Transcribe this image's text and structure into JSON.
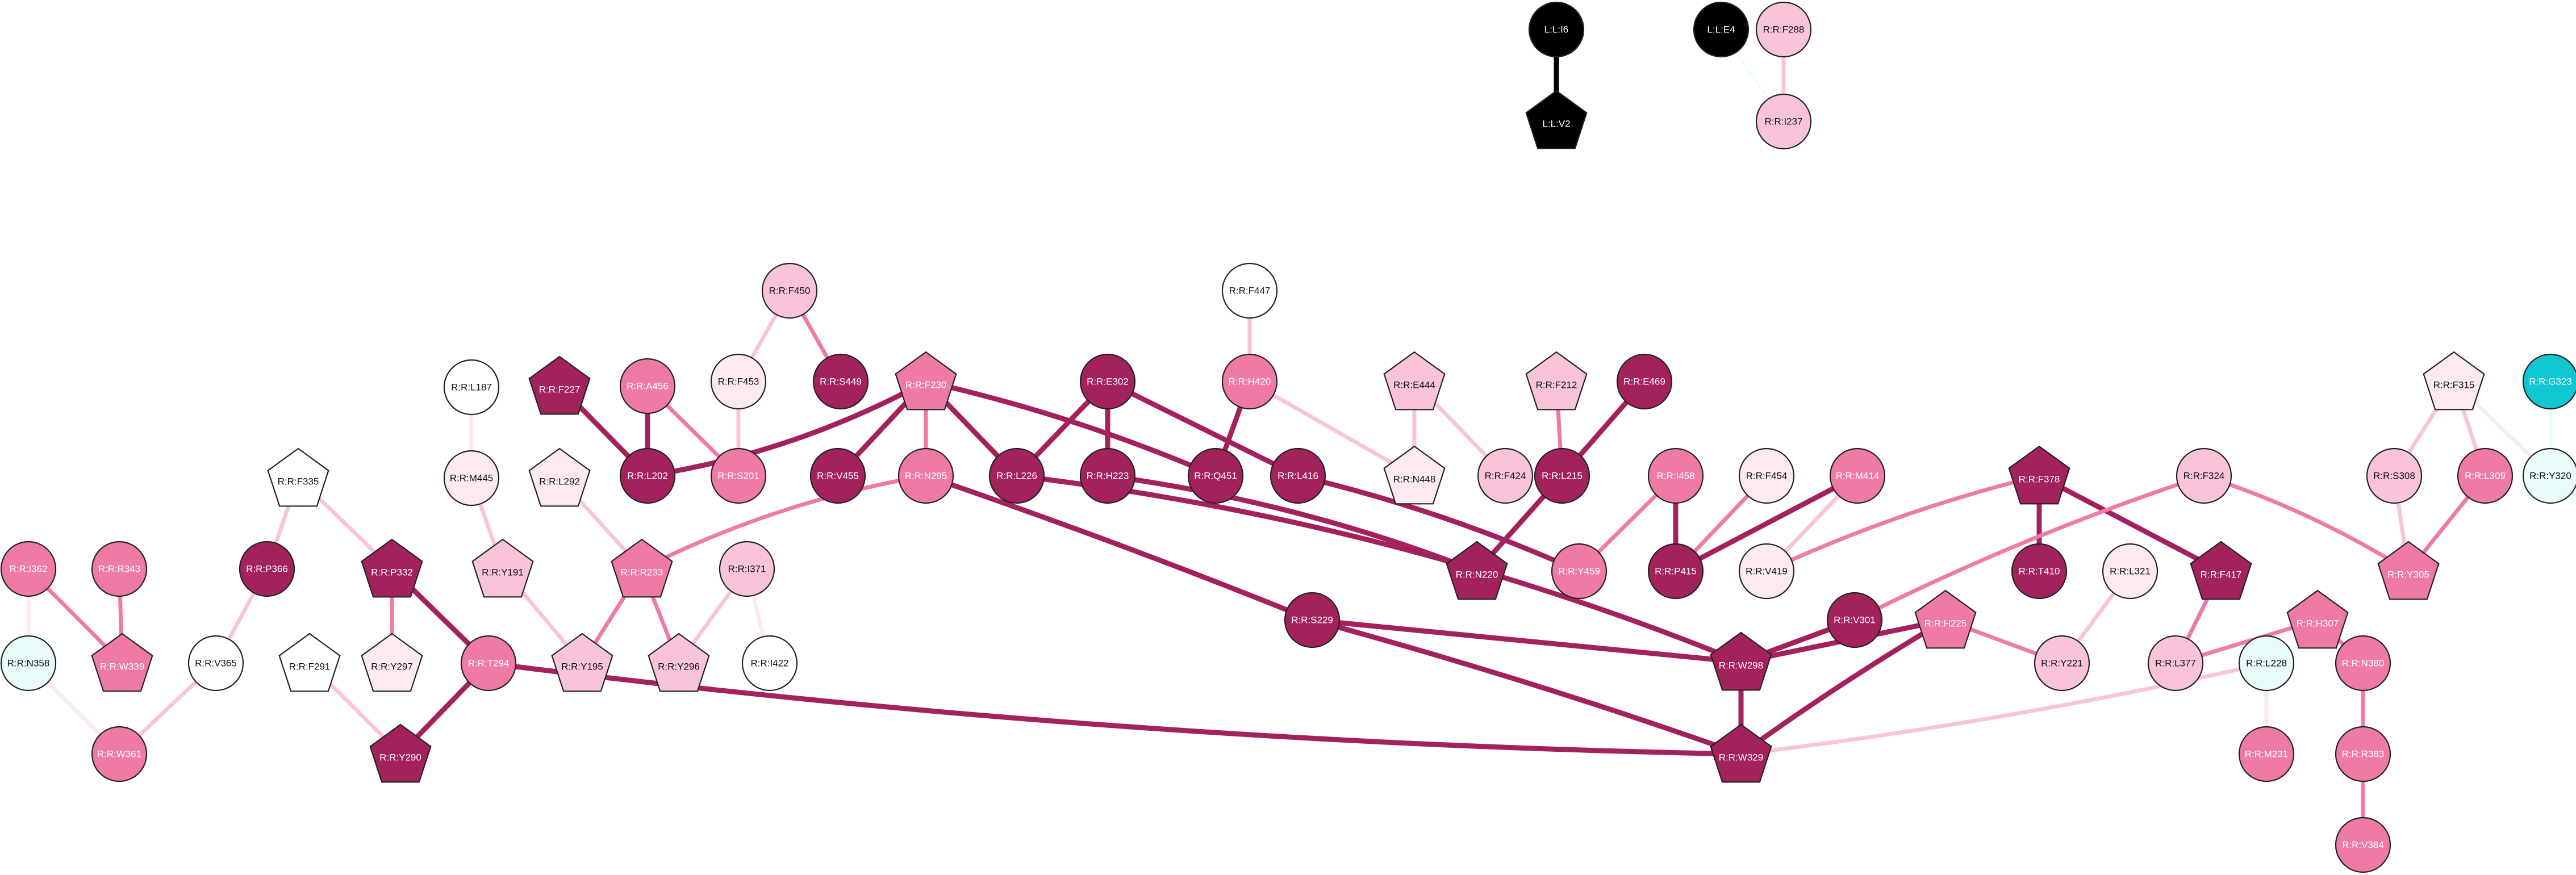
{
  "colors": {
    "black": "#000000",
    "dark": "#a3215d",
    "medium": "#ef7aa6",
    "light": "#f9c4da",
    "pale": "#fde9f1",
    "white": "#ffffff",
    "cyan": "#0fc6d1",
    "palecyan": "#e9fbfb"
  },
  "nodes": [
    {
      "id": "L:L:I6",
      "shape": "circle",
      "color": "black"
    },
    {
      "id": "L:L:V2",
      "shape": "pentagon",
      "color": "black"
    },
    {
      "id": "L:L:E4",
      "shape": "circle",
      "color": "black"
    },
    {
      "id": "R:R:F288",
      "shape": "circle",
      "color": "light"
    },
    {
      "id": "R:R:I237",
      "shape": "circle",
      "color": "light"
    },
    {
      "id": "R:R:F450",
      "shape": "circle",
      "color": "light"
    },
    {
      "id": "R:R:F453",
      "shape": "circle",
      "color": "pale"
    },
    {
      "id": "R:R:S449",
      "shape": "circle",
      "color": "dark"
    },
    {
      "id": "R:R:F447",
      "shape": "circle",
      "color": "white"
    },
    {
      "id": "R:R:H420",
      "shape": "circle",
      "color": "medium"
    },
    {
      "id": "R:R:L187",
      "shape": "circle",
      "color": "white"
    },
    {
      "id": "R:R:M445",
      "shape": "circle",
      "color": "pale"
    },
    {
      "id": "R:R:Y191",
      "shape": "pentagon",
      "color": "light"
    },
    {
      "id": "R:R:F227",
      "shape": "pentagon",
      "color": "dark"
    },
    {
      "id": "R:R:L202",
      "shape": "circle",
      "color": "dark"
    },
    {
      "id": "R:R:A456",
      "shape": "circle",
      "color": "medium"
    },
    {
      "id": "R:R:S201",
      "shape": "circle",
      "color": "medium"
    },
    {
      "id": "R:R:F230",
      "shape": "pentagon",
      "color": "medium"
    },
    {
      "id": "R:R:V455",
      "shape": "circle",
      "color": "dark"
    },
    {
      "id": "R:R:N295",
      "shape": "circle",
      "color": "medium"
    },
    {
      "id": "R:R:L226",
      "shape": "circle",
      "color": "dark"
    },
    {
      "id": "R:R:E302",
      "shape": "circle",
      "color": "dark"
    },
    {
      "id": "R:R:H223",
      "shape": "circle",
      "color": "dark"
    },
    {
      "id": "R:R:Q451",
      "shape": "circle",
      "color": "dark"
    },
    {
      "id": "R:R:L416",
      "shape": "circle",
      "color": "dark"
    },
    {
      "id": "R:R:E444",
      "shape": "pentagon",
      "color": "light"
    },
    {
      "id": "R:R:N448",
      "shape": "pentagon",
      "color": "pale"
    },
    {
      "id": "R:R:F424",
      "shape": "circle",
      "color": "light"
    },
    {
      "id": "R:R:F212",
      "shape": "pentagon",
      "color": "light"
    },
    {
      "id": "R:R:E469",
      "shape": "circle",
      "color": "dark"
    },
    {
      "id": "R:R:L215",
      "shape": "circle",
      "color": "dark"
    },
    {
      "id": "R:R:N220",
      "shape": "pentagon",
      "color": "dark"
    },
    {
      "id": "R:R:I458",
      "shape": "circle",
      "color": "medium"
    },
    {
      "id": "R:R:Y459",
      "shape": "circle",
      "color": "medium"
    },
    {
      "id": "R:R:F454",
      "shape": "circle",
      "color": "pale"
    },
    {
      "id": "R:R:M414",
      "shape": "circle",
      "color": "medium"
    },
    {
      "id": "R:R:P415",
      "shape": "circle",
      "color": "dark"
    },
    {
      "id": "R:R:V419",
      "shape": "circle",
      "color": "pale"
    },
    {
      "id": "R:R:L292",
      "shape": "pentagon",
      "color": "pale"
    },
    {
      "id": "R:R:R233",
      "shape": "pentagon",
      "color": "medium"
    },
    {
      "id": "R:R:I371",
      "shape": "circle",
      "color": "light"
    },
    {
      "id": "R:R:Y195",
      "shape": "pentagon",
      "color": "light"
    },
    {
      "id": "R:R:Y296",
      "shape": "pentagon",
      "color": "light"
    },
    {
      "id": "R:R:I422",
      "shape": "circle",
      "color": "white"
    },
    {
      "id": "R:R:F335",
      "shape": "pentagon",
      "color": "white"
    },
    {
      "id": "R:R:P366",
      "shape": "circle",
      "color": "dark"
    },
    {
      "id": "R:R:P332",
      "shape": "pentagon",
      "color": "dark"
    },
    {
      "id": "R:R:Y297",
      "shape": "pentagon",
      "color": "pale"
    },
    {
      "id": "R:R:T294",
      "shape": "circle",
      "color": "medium"
    },
    {
      "id": "R:R:Y290",
      "shape": "pentagon",
      "color": "dark"
    },
    {
      "id": "R:R:F291",
      "shape": "pentagon",
      "color": "white"
    },
    {
      "id": "R:R:I362",
      "shape": "circle",
      "color": "medium"
    },
    {
      "id": "R:R:R343",
      "shape": "circle",
      "color": "medium"
    },
    {
      "id": "R:R:W339",
      "shape": "pentagon",
      "color": "medium"
    },
    {
      "id": "R:R:N358",
      "shape": "circle",
      "color": "palecyan"
    },
    {
      "id": "R:R:V365",
      "shape": "circle",
      "color": "white"
    },
    {
      "id": "R:R:W361",
      "shape": "circle",
      "color": "medium"
    },
    {
      "id": "R:R:S229",
      "shape": "circle",
      "color": "dark"
    },
    {
      "id": "R:R:W298",
      "shape": "pentagon",
      "color": "dark"
    },
    {
      "id": "R:R:W329",
      "shape": "pentagon",
      "color": "dark"
    },
    {
      "id": "R:R:V301",
      "shape": "circle",
      "color": "dark"
    },
    {
      "id": "R:R:H225",
      "shape": "pentagon",
      "color": "medium"
    },
    {
      "id": "R:R:F378",
      "shape": "pentagon",
      "color": "dark"
    },
    {
      "id": "R:R:T410",
      "shape": "circle",
      "color": "dark"
    },
    {
      "id": "R:R:L321",
      "shape": "circle",
      "color": "pale"
    },
    {
      "id": "R:R:Y221",
      "shape": "circle",
      "color": "light"
    },
    {
      "id": "R:R:F324",
      "shape": "circle",
      "color": "light"
    },
    {
      "id": "R:R:F417",
      "shape": "pentagon",
      "color": "dark"
    },
    {
      "id": "R:R:L377",
      "shape": "circle",
      "color": "light"
    },
    {
      "id": "R:R:H307",
      "shape": "pentagon",
      "color": "medium"
    },
    {
      "id": "R:R:L228",
      "shape": "circle",
      "color": "palecyan"
    },
    {
      "id": "R:R:N380",
      "shape": "circle",
      "color": "medium"
    },
    {
      "id": "R:R:M231",
      "shape": "circle",
      "color": "medium"
    },
    {
      "id": "R:R:R383",
      "shape": "circle",
      "color": "medium"
    },
    {
      "id": "R:R:V384",
      "shape": "circle",
      "color": "medium"
    },
    {
      "id": "R:R:F315",
      "shape": "pentagon",
      "color": "pale"
    },
    {
      "id": "R:R:S308",
      "shape": "circle",
      "color": "light"
    },
    {
      "id": "R:R:L309",
      "shape": "circle",
      "color": "medium"
    },
    {
      "id": "R:R:Y305",
      "shape": "pentagon",
      "color": "medium"
    },
    {
      "id": "R:R:G323",
      "shape": "circle",
      "color": "cyan"
    },
    {
      "id": "R:R:Y320",
      "shape": "circle",
      "color": "palecyan"
    }
  ],
  "edges": [
    {
      "source": "L:L:I6",
      "target": "L:L:V2",
      "color": "black",
      "weight": "thick"
    },
    {
      "source": "L:L:E4",
      "target": "R:R:I237",
      "color": "palecyan",
      "weight": "thin"
    },
    {
      "source": "R:R:F288",
      "target": "R:R:I237",
      "color": "light",
      "weight": "medium"
    },
    {
      "source": "R:R:F450",
      "target": "R:R:F453",
      "color": "light",
      "weight": "medium"
    },
    {
      "source": "R:R:F450",
      "target": "R:R:S449",
      "color": "medium",
      "weight": "medium"
    },
    {
      "source": "R:R:F453",
      "target": "R:R:S201",
      "color": "light",
      "weight": "medium"
    },
    {
      "source": "R:R:F447",
      "target": "R:R:H420",
      "color": "light",
      "weight": "medium"
    },
    {
      "source": "R:R:H420",
      "target": "R:R:Q451",
      "color": "dark",
      "weight": "thick"
    },
    {
      "source": "R:R:H420",
      "target": "R:R:N448",
      "color": "light",
      "weight": "medium"
    },
    {
      "source": "R:R:L187",
      "target": "R:R:M445",
      "color": "pale",
      "weight": "medium"
    },
    {
      "source": "R:R:M445",
      "target": "R:R:Y191",
      "color": "light",
      "weight": "medium"
    },
    {
      "source": "R:R:Y191",
      "target": "R:R:Y195",
      "color": "light",
      "weight": "medium"
    },
    {
      "source": "R:R:F227",
      "target": "R:R:L202",
      "color": "dark",
      "weight": "thick"
    },
    {
      "source": "R:R:A456",
      "target": "R:R:L202",
      "color": "dark",
      "weight": "thick"
    },
    {
      "source": "R:R:A456",
      "target": "R:R:S201",
      "color": "medium",
      "weight": "medium"
    },
    {
      "source": "R:R:F230",
      "target": "R:R:L202",
      "color": "dark",
      "weight": "thick"
    },
    {
      "source": "R:R:F230",
      "target": "R:R:V455",
      "color": "dark",
      "weight": "thick"
    },
    {
      "source": "R:R:F230",
      "target": "R:R:N295",
      "color": "medium",
      "weight": "medium"
    },
    {
      "source": "R:R:F230",
      "target": "R:R:L226",
      "color": "dark",
      "weight": "thick"
    },
    {
      "source": "R:R:F230",
      "target": "R:R:Q451",
      "color": "dark",
      "weight": "thick"
    },
    {
      "source": "R:R:E302",
      "target": "R:R:L226",
      "color": "dark",
      "weight": "thick"
    },
    {
      "source": "R:R:E302",
      "target": "R:R:H223",
      "color": "dark",
      "weight": "thick"
    },
    {
      "source": "R:R:E302",
      "target": "R:R:L416",
      "color": "dark",
      "weight": "thick"
    },
    {
      "source": "R:R:L416",
      "target": "R:R:Y459",
      "color": "dark",
      "weight": "thick"
    },
    {
      "source": "R:R:E444",
      "target": "R:R:N448",
      "color": "light",
      "weight": "medium"
    },
    {
      "source": "R:R:E444",
      "target": "R:R:F424",
      "color": "light",
      "weight": "medium"
    },
    {
      "source": "R:R:F212",
      "target": "R:R:L215",
      "color": "medium",
      "weight": "medium"
    },
    {
      "source": "R:R:E469",
      "target": "R:R:L215",
      "color": "dark",
      "weight": "thick"
    },
    {
      "source": "R:R:L215",
      "target": "R:R:N220",
      "color": "dark",
      "weight": "thick"
    },
    {
      "source": "R:R:H223",
      "target": "R:R:N220",
      "color": "dark",
      "weight": "thick"
    },
    {
      "source": "R:R:L226",
      "target": "R:R:W298",
      "color": "dark",
      "weight": "thick"
    },
    {
      "source": "R:R:I458",
      "target": "R:R:Y459",
      "color": "medium",
      "weight": "medium"
    },
    {
      "source": "R:R:I458",
      "target": "R:R:P415",
      "color": "dark",
      "weight": "thick"
    },
    {
      "source": "R:R:F454",
      "target": "R:R:P415",
      "color": "medium",
      "weight": "medium"
    },
    {
      "source": "R:R:M414",
      "target": "R:R:P415",
      "color": "dark",
      "weight": "thick"
    },
    {
      "source": "R:R:M414",
      "target": "R:R:V419",
      "color": "light",
      "weight": "medium"
    },
    {
      "source": "R:R:L292",
      "target": "R:R:R233",
      "color": "light",
      "weight": "medium"
    },
    {
      "source": "R:R:N295",
      "target": "R:R:R233",
      "color": "medium",
      "weight": "medium"
    },
    {
      "source": "R:R:N295",
      "target": "R:R:S229",
      "color": "dark",
      "weight": "thick"
    },
    {
      "source": "R:R:R233",
      "target": "R:R:Y195",
      "color": "medium",
      "weight": "medium"
    },
    {
      "source": "R:R:R233",
      "target": "R:R:Y296",
      "color": "medium",
      "weight": "medium"
    },
    {
      "source": "R:R:I371",
      "target": "R:R:Y296",
      "color": "light",
      "weight": "medium"
    },
    {
      "source": "R:R:I371",
      "target": "R:R:I422",
      "color": "pale",
      "weight": "medium"
    },
    {
      "source": "R:R:F335",
      "target": "R:R:P366",
      "color": "light",
      "weight": "medium"
    },
    {
      "source": "R:R:F335",
      "target": "R:R:P332",
      "color": "light",
      "weight": "medium"
    },
    {
      "source": "R:R:P332",
      "target": "R:R:Y297",
      "color": "medium",
      "weight": "medium"
    },
    {
      "source": "R:R:P332",
      "target": "R:R:T294",
      "color": "dark",
      "weight": "thick"
    },
    {
      "source": "R:R:T294",
      "target": "R:R:Y290",
      "color": "dark",
      "weight": "thick"
    },
    {
      "source": "R:R:T294",
      "target": "R:R:W329",
      "color": "dark",
      "weight": "thick"
    },
    {
      "source": "R:R:F291",
      "target": "R:R:Y290",
      "color": "light",
      "weight": "medium"
    },
    {
      "source": "R:R:I362",
      "target": "R:R:W339",
      "color": "medium",
      "weight": "medium"
    },
    {
      "source": "R:R:R343",
      "target": "R:R:W339",
      "color": "medium",
      "weight": "medium"
    },
    {
      "source": "R:R:I362",
      "target": "R:R:N358",
      "color": "pale",
      "weight": "medium"
    },
    {
      "source": "R:R:N358",
      "target": "R:R:W361",
      "color": "pale",
      "weight": "medium"
    },
    {
      "source": "R:R:P366",
      "target": "R:R:V365",
      "color": "light",
      "weight": "medium"
    },
    {
      "source": "R:R:V365",
      "target": "R:R:W361",
      "color": "light",
      "weight": "medium"
    },
    {
      "source": "R:R:S229",
      "target": "R:R:W298",
      "color": "dark",
      "weight": "thick"
    },
    {
      "source": "R:R:S229",
      "target": "R:R:W329",
      "color": "dark",
      "weight": "thick"
    },
    {
      "source": "R:R:W298",
      "target": "R:R:W329",
      "color": "dark",
      "weight": "thick"
    },
    {
      "source": "R:R:V301",
      "target": "R:R:W298",
      "color": "dark",
      "weight": "thick"
    },
    {
      "source": "R:R:H225",
      "target": "R:R:W298",
      "color": "dark",
      "weight": "thick"
    },
    {
      "source": "R:R:H225",
      "target": "R:R:W329",
      "color": "dark",
      "weight": "thick"
    },
    {
      "source": "R:R:H225",
      "target": "R:R:Y221",
      "color": "medium",
      "weight": "medium"
    },
    {
      "source": "R:R:F378",
      "target": "R:R:T410",
      "color": "dark",
      "weight": "thick"
    },
    {
      "source": "R:R:F378",
      "target": "R:R:V419",
      "color": "medium",
      "weight": "medium"
    },
    {
      "source": "R:R:F378",
      "target": "R:R:F417",
      "color": "dark",
      "weight": "thick"
    },
    {
      "source": "R:R:L321",
      "target": "R:R:Y221",
      "color": "light",
      "weight": "medium"
    },
    {
      "source": "R:R:F324",
      "target": "R:R:V301",
      "color": "medium",
      "weight": "medium"
    },
    {
      "source": "R:R:F324",
      "target": "R:R:Y305",
      "color": "medium",
      "weight": "medium"
    },
    {
      "source": "R:R:F417",
      "target": "R:R:L377",
      "color": "medium",
      "weight": "medium"
    },
    {
      "source": "R:R:H307",
      "target": "R:R:L377",
      "color": "medium",
      "weight": "medium"
    },
    {
      "source": "R:R:H307",
      "target": "R:R:N380",
      "color": "medium",
      "weight": "medium"
    },
    {
      "source": "R:R:L228",
      "target": "R:R:W329",
      "color": "light",
      "weight": "medium"
    },
    {
      "source": "R:R:L228",
      "target": "R:R:M231",
      "color": "pale",
      "weight": "medium"
    },
    {
      "source": "R:R:N380",
      "target": "R:R:R383",
      "color": "medium",
      "weight": "medium"
    },
    {
      "source": "R:R:R383",
      "target": "R:R:V384",
      "color": "medium",
      "weight": "medium"
    },
    {
      "source": "R:R:F315",
      "target": "R:R:S308",
      "color": "light",
      "weight": "medium"
    },
    {
      "source": "R:R:F315",
      "target": "R:R:L309",
      "color": "light",
      "weight": "medium"
    },
    {
      "source": "R:R:F315",
      "target": "R:R:Y320",
      "color": "pale",
      "weight": "medium"
    },
    {
      "source": "R:R:S308",
      "target": "R:R:Y305",
      "color": "light",
      "weight": "medium"
    },
    {
      "source": "R:R:L309",
      "target": "R:R:Y305",
      "color": "medium",
      "weight": "medium"
    },
    {
      "source": "R:R:G323",
      "target": "R:R:Y320",
      "color": "palecyan",
      "weight": "medium"
    }
  ]
}
